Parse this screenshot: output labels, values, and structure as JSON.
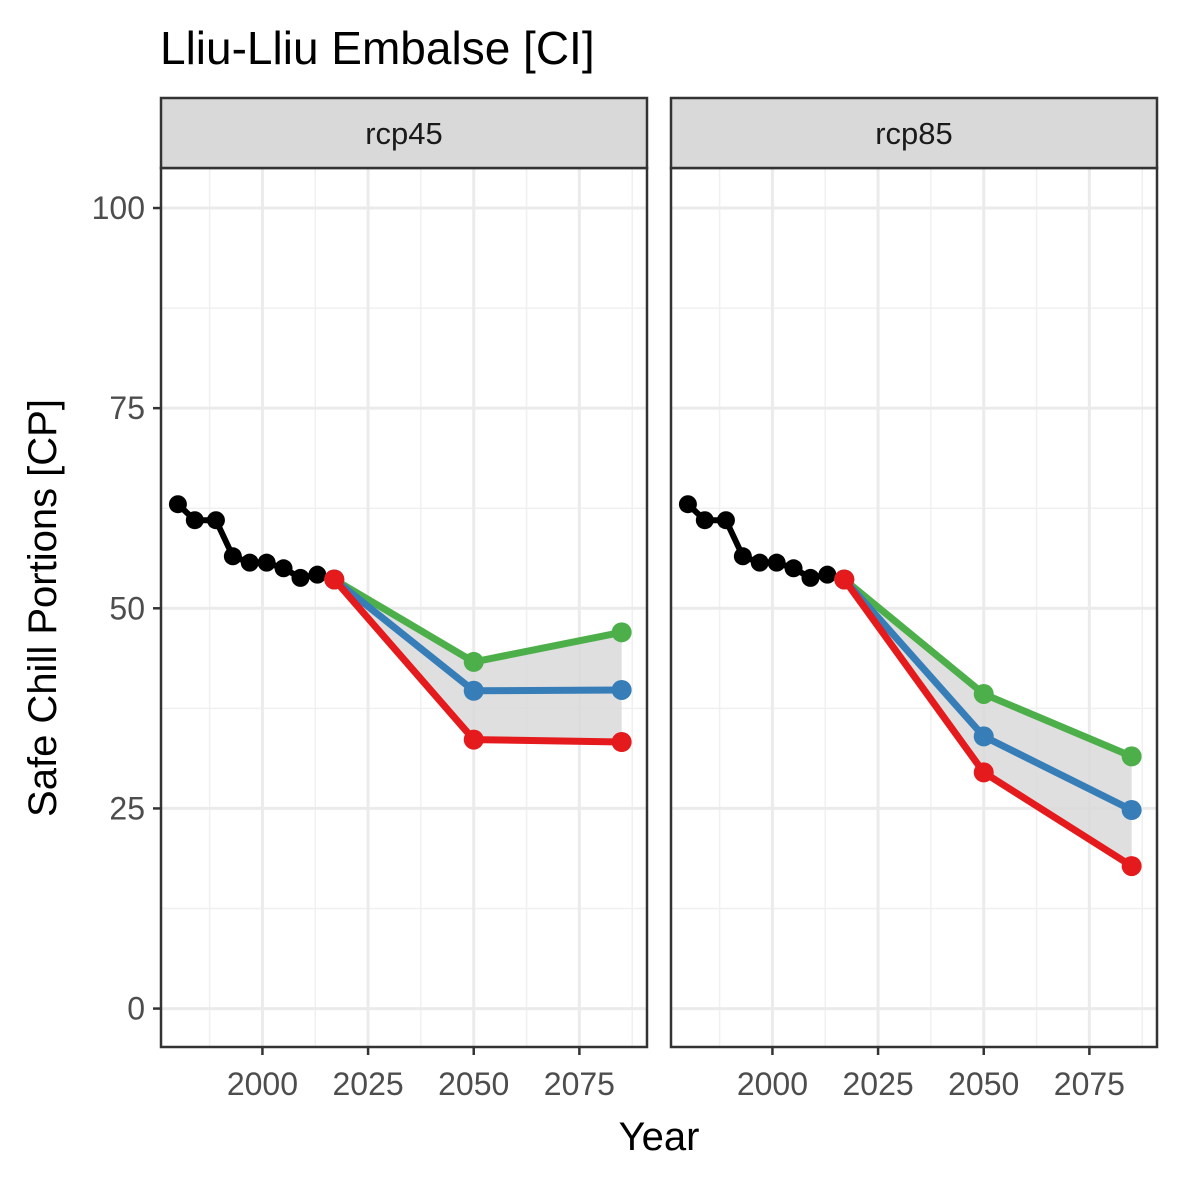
{
  "chart_data": {
    "type": "line",
    "title": "Lliu-Lliu Embalse [CI]",
    "xlabel": "Year",
    "ylabel": "Safe Chill Portions [CP]",
    "xlim": [
      1976,
      2091
    ],
    "ylim": [
      -4.8,
      105
    ],
    "x_ticks": [
      2000,
      2025,
      2050,
      2075
    ],
    "y_ticks": [
      0,
      25,
      50,
      75,
      100
    ],
    "grid": true,
    "colors": {
      "historic": "#000000",
      "optimistic": "#4daf4a",
      "intermediate": "#377eb8",
      "pessimistic": "#e41a1c",
      "ribbon": "#d9d9d9"
    },
    "panels": [
      {
        "label": "rcp45",
        "historic": {
          "x": [
            1980,
            1984,
            1989,
            1993,
            1997,
            2001,
            2005,
            2009,
            2013,
            2017
          ],
          "values": [
            63.0,
            61.0,
            61.0,
            56.5,
            55.7,
            55.7,
            55.0,
            53.8,
            54.2,
            53.6
          ]
        },
        "series": [
          {
            "x": [
              2017,
              2050,
              2085
            ],
            "values": [
              53.6,
              43.3,
              47.0
            ]
          },
          {
            "x": [
              2017,
              2050,
              2085
            ],
            "values": [
              53.6,
              39.7,
              39.8
            ]
          },
          {
            "x": [
              2017,
              2050,
              2085
            ],
            "values": [
              53.6,
              33.6,
              33.3
            ]
          }
        ]
      },
      {
        "label": "rcp85",
        "historic": {
          "x": [
            1980,
            1984,
            1989,
            1993,
            1997,
            2001,
            2005,
            2009,
            2013,
            2017
          ],
          "values": [
            63.0,
            61.0,
            61.0,
            56.5,
            55.7,
            55.7,
            55.0,
            53.8,
            54.2,
            53.6
          ]
        },
        "series": [
          {
            "x": [
              2017,
              2050,
              2085
            ],
            "values": [
              53.6,
              39.3,
              31.5
            ]
          },
          {
            "x": [
              2017,
              2050,
              2085
            ],
            "values": [
              53.6,
              34.0,
              24.8
            ]
          },
          {
            "x": [
              2017,
              2050,
              2085
            ],
            "values": [
              53.6,
              29.5,
              17.8
            ]
          }
        ]
      }
    ]
  }
}
